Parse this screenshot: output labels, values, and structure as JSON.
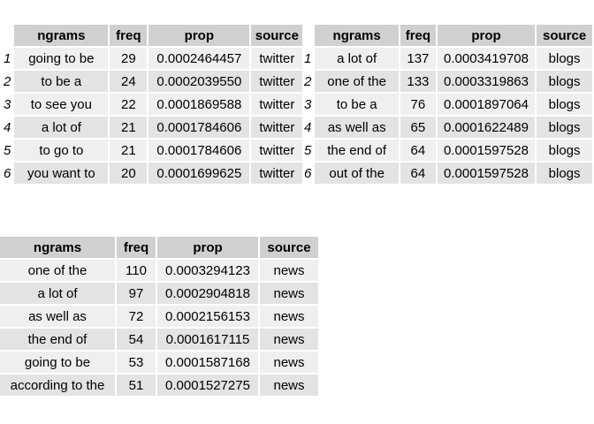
{
  "headers": {
    "ngrams": "ngrams",
    "freq": "freq",
    "prop": "prop",
    "source": "source"
  },
  "row_numbers": [
    "1",
    "2",
    "3",
    "4",
    "5",
    "6"
  ],
  "twitter": [
    {
      "ngram": "going to be",
      "freq": "29",
      "prop": "0.0002464457",
      "source": "twitter"
    },
    {
      "ngram": "to be a",
      "freq": "24",
      "prop": "0.0002039550",
      "source": "twitter"
    },
    {
      "ngram": "to see you",
      "freq": "22",
      "prop": "0.0001869588",
      "source": "twitter"
    },
    {
      "ngram": "a lot of",
      "freq": "21",
      "prop": "0.0001784606",
      "source": "twitter"
    },
    {
      "ngram": "to go to",
      "freq": "21",
      "prop": "0.0001784606",
      "source": "twitter"
    },
    {
      "ngram": "you want to",
      "freq": "20",
      "prop": "0.0001699625",
      "source": "twitter"
    }
  ],
  "blogs": [
    {
      "ngram": "a lot of",
      "freq": "137",
      "prop": "0.0003419708",
      "source": "blogs"
    },
    {
      "ngram": "one of the",
      "freq": "133",
      "prop": "0.0003319863",
      "source": "blogs"
    },
    {
      "ngram": "to be a",
      "freq": "76",
      "prop": "0.0001897064",
      "source": "blogs"
    },
    {
      "ngram": "as well as",
      "freq": "65",
      "prop": "0.0001622489",
      "source": "blogs"
    },
    {
      "ngram": "the end of",
      "freq": "64",
      "prop": "0.0001597528",
      "source": "blogs"
    },
    {
      "ngram": "out of the",
      "freq": "64",
      "prop": "0.0001597528",
      "source": "blogs"
    }
  ],
  "news": [
    {
      "ngram": "one of the",
      "freq": "110",
      "prop": "0.0003294123",
      "source": "news"
    },
    {
      "ngram": "a lot of",
      "freq": "97",
      "prop": "0.0002904818",
      "source": "news"
    },
    {
      "ngram": "as well as",
      "freq": "72",
      "prop": "0.0002156153",
      "source": "news"
    },
    {
      "ngram": "the end of",
      "freq": "54",
      "prop": "0.0001617115",
      "source": "news"
    },
    {
      "ngram": "going to be",
      "freq": "53",
      "prop": "0.0001587168",
      "source": "news"
    },
    {
      "ngram": "according to the",
      "freq": "51",
      "prop": "0.0001527275",
      "source": "news"
    }
  ]
}
